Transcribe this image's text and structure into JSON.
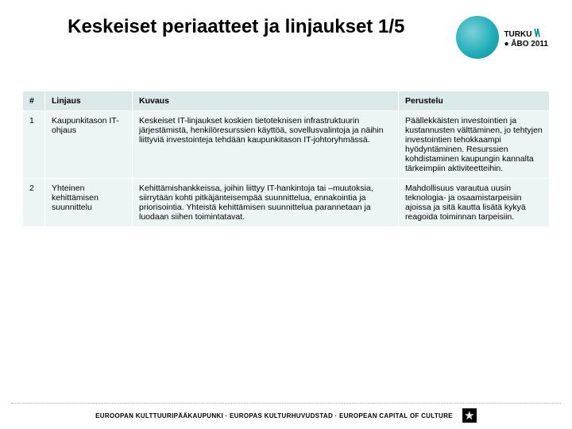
{
  "title": "Keskeiset periaatteet ja linjaukset 1/5",
  "logo": {
    "line1": "TURKU",
    "line2": "ÅBO",
    "year": "2011"
  },
  "table": {
    "columns": [
      "#",
      "Linjaus",
      "Kuvaus",
      "Perustelu"
    ],
    "rows": [
      {
        "num": "1",
        "linjaus": "Kaupunkitason IT-ohjaus",
        "kuvaus": "Keskeiset IT-linjaukset koskien tietoteknisen infrastruktuurin järjestämistä, henkilöresurssien käyttöä, sovellusvalintoja ja näihin liittyviä investointeja tehdään kaupunkitason IT-johtoryhmässä.",
        "perustelu": "Päällekkäisten investointien ja kustannusten välttäminen, jo tehtyjen investointien tehokkaampi hyödyntäminen. Resurssien kohdistaminen kaupungin kannalta tärkeimpiin aktiviteetteihin."
      },
      {
        "num": "2",
        "linjaus": "Yhteinen kehittämisen suunnittelu",
        "kuvaus": "Kehittämishankkeissa, joihin liittyy IT-hankintoja tai –muutoksia, siirrytään kohti pitkäjänteisempää suunnittelua, ennakointia ja priorisointia. Yhteistä kehittämisen suunnittelua parannetaan ja luodaan siihen toimintatavat.",
        "perustelu": "Mahdollisuus varautua uusin teknologia- ja osaamistarpeisiin ajoissa ja sitä kautta lisätä kykyä reagoida toiminnan tarpeisiin."
      }
    ],
    "header_bg": "#dbe9ea",
    "row_bg": "#edf4f5",
    "border_color": "#ffffff",
    "font_size": 10.5
  },
  "footer": {
    "text": "EUROOPAN KULTTUURIPÄÄKAUPUNKI · EUROPAS KULTURHUVUDSTAD · EUROPEAN CAPITAL OF CULTURE"
  },
  "colors": {
    "accent": "#21b0bb",
    "text": "#000000",
    "background": "#ffffff"
  }
}
